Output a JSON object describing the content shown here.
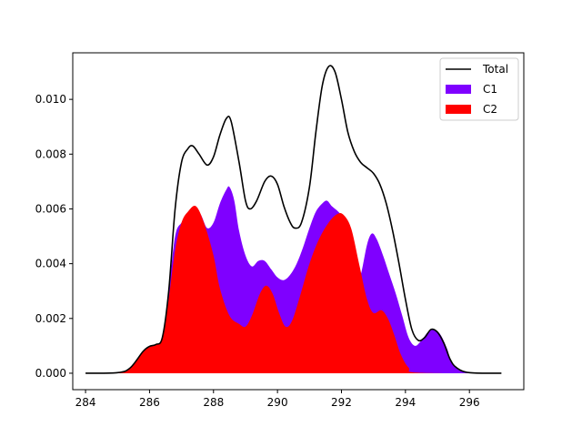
{
  "chart_data": {
    "type": "area",
    "xlim": [
      283.6,
      297.7
    ],
    "ylim": [
      -0.0006,
      0.0117
    ],
    "x_ticks": [
      284,
      286,
      288,
      290,
      292,
      294,
      296
    ],
    "y_ticks": [
      0.0,
      0.002,
      0.004,
      0.006,
      0.008,
      0.01
    ],
    "x_tick_labels": [
      "284",
      "286",
      "288",
      "290",
      "292",
      "294",
      "296"
    ],
    "y_tick_labels": [
      "0.000",
      "0.002",
      "0.004",
      "0.006",
      "0.008",
      "0.010"
    ],
    "legend_position": "upper-right",
    "legend": [
      "Total",
      "C1",
      "C2"
    ],
    "series": [
      {
        "name": "Total",
        "kind": "line",
        "color": "#000000",
        "points": [
          [
            284.0,
            0.0
          ],
          [
            285.0,
            2e-05
          ],
          [
            285.4,
            0.0002
          ],
          [
            285.8,
            0.0008
          ],
          [
            286.0,
            0.00098
          ],
          [
            286.2,
            0.00105
          ],
          [
            286.4,
            0.0013
          ],
          [
            286.6,
            0.003
          ],
          [
            286.8,
            0.006
          ],
          [
            287.0,
            0.0077
          ],
          [
            287.2,
            0.0082
          ],
          [
            287.35,
            0.0083
          ],
          [
            287.55,
            0.008
          ],
          [
            287.8,
            0.0076
          ],
          [
            288.0,
            0.0079
          ],
          [
            288.2,
            0.0087
          ],
          [
            288.4,
            0.0093
          ],
          [
            288.55,
            0.0092
          ],
          [
            288.8,
            0.0077
          ],
          [
            289.0,
            0.0063
          ],
          [
            289.15,
            0.006
          ],
          [
            289.35,
            0.0063
          ],
          [
            289.6,
            0.007
          ],
          [
            289.8,
            0.0072
          ],
          [
            290.0,
            0.0069
          ],
          [
            290.2,
            0.0061
          ],
          [
            290.4,
            0.0055
          ],
          [
            290.55,
            0.0053
          ],
          [
            290.75,
            0.0055
          ],
          [
            291.0,
            0.0068
          ],
          [
            291.2,
            0.0088
          ],
          [
            291.4,
            0.0105
          ],
          [
            291.6,
            0.0112
          ],
          [
            291.8,
            0.011
          ],
          [
            292.0,
            0.01
          ],
          [
            292.2,
            0.0088
          ],
          [
            292.4,
            0.0081
          ],
          [
            292.6,
            0.0077
          ],
          [
            292.8,
            0.0075
          ],
          [
            293.0,
            0.0073
          ],
          [
            293.2,
            0.0069
          ],
          [
            293.4,
            0.0062
          ],
          [
            293.6,
            0.0052
          ],
          [
            293.8,
            0.004
          ],
          [
            294.0,
            0.0027
          ],
          [
            294.2,
            0.0016
          ],
          [
            294.4,
            0.0012
          ],
          [
            294.6,
            0.0013
          ],
          [
            294.8,
            0.0016
          ],
          [
            295.0,
            0.0015
          ],
          [
            295.2,
            0.0011
          ],
          [
            295.4,
            0.0005
          ],
          [
            295.6,
            0.0002
          ],
          [
            296.0,
            2e-05
          ],
          [
            297.0,
            0.0
          ]
        ]
      },
      {
        "name": "C1",
        "kind": "fill",
        "color": "#7f00ff",
        "points": [
          [
            284.0,
            0.0
          ],
          [
            285.0,
            2e-05
          ],
          [
            285.4,
            0.0002
          ],
          [
            285.8,
            0.0008
          ],
          [
            286.0,
            0.00098
          ],
          [
            286.2,
            0.00105
          ],
          [
            286.4,
            0.0013
          ],
          [
            286.6,
            0.003
          ],
          [
            286.8,
            0.005
          ],
          [
            287.0,
            0.0055
          ],
          [
            287.2,
            0.0058
          ],
          [
            287.4,
            0.006
          ],
          [
            287.6,
            0.0058
          ],
          [
            287.8,
            0.0053
          ],
          [
            288.0,
            0.0055
          ],
          [
            288.2,
            0.0062
          ],
          [
            288.4,
            0.0067
          ],
          [
            288.5,
            0.0068
          ],
          [
            288.65,
            0.0063
          ],
          [
            288.8,
            0.0052
          ],
          [
            289.0,
            0.0043
          ],
          [
            289.2,
            0.0039
          ],
          [
            289.4,
            0.0041
          ],
          [
            289.6,
            0.0041
          ],
          [
            289.8,
            0.0038
          ],
          [
            290.0,
            0.0035
          ],
          [
            290.2,
            0.0034
          ],
          [
            290.4,
            0.0036
          ],
          [
            290.6,
            0.004
          ],
          [
            290.8,
            0.0046
          ],
          [
            291.0,
            0.0053
          ],
          [
            291.2,
            0.0059
          ],
          [
            291.4,
            0.0062
          ],
          [
            291.55,
            0.0063
          ],
          [
            291.7,
            0.0061
          ],
          [
            291.9,
            0.0059
          ],
          [
            292.1,
            0.0056
          ],
          [
            292.3,
            0.0049
          ],
          [
            292.5,
            0.0039
          ],
          [
            292.6,
            0.0036
          ],
          [
            292.8,
            0.0047
          ],
          [
            292.95,
            0.0051
          ],
          [
            293.1,
            0.0049
          ],
          [
            293.3,
            0.0043
          ],
          [
            293.5,
            0.0036
          ],
          [
            293.7,
            0.0029
          ],
          [
            293.9,
            0.0021
          ],
          [
            294.1,
            0.0013
          ],
          [
            294.3,
            0.001
          ],
          [
            294.5,
            0.0012
          ],
          [
            294.7,
            0.0015
          ],
          [
            294.9,
            0.0016
          ],
          [
            295.1,
            0.0014
          ],
          [
            295.3,
            0.0009
          ],
          [
            295.5,
            0.0003
          ],
          [
            296.0,
            2e-05
          ],
          [
            297.0,
            0.0
          ]
        ]
      },
      {
        "name": "C2",
        "kind": "fill",
        "color": "#ff0000",
        "points": [
          [
            284.0,
            0.0
          ],
          [
            285.0,
            2e-05
          ],
          [
            285.4,
            0.0002
          ],
          [
            285.8,
            0.0008
          ],
          [
            286.0,
            0.00098
          ],
          [
            286.2,
            0.00105
          ],
          [
            286.4,
            0.0013
          ],
          [
            286.6,
            0.0027
          ],
          [
            286.8,
            0.0045
          ],
          [
            287.0,
            0.0055
          ],
          [
            287.2,
            0.0059
          ],
          [
            287.45,
            0.0061
          ],
          [
            287.7,
            0.0055
          ],
          [
            288.0,
            0.0043
          ],
          [
            288.2,
            0.0031
          ],
          [
            288.5,
            0.0021
          ],
          [
            288.8,
            0.0018
          ],
          [
            289.0,
            0.0017
          ],
          [
            289.2,
            0.0021
          ],
          [
            289.45,
            0.0029
          ],
          [
            289.65,
            0.0032
          ],
          [
            289.85,
            0.0029
          ],
          [
            290.05,
            0.0022
          ],
          [
            290.25,
            0.0017
          ],
          [
            290.45,
            0.0019
          ],
          [
            290.7,
            0.0028
          ],
          [
            291.0,
            0.004
          ],
          [
            291.3,
            0.0049
          ],
          [
            291.6,
            0.0055
          ],
          [
            291.85,
            0.0058
          ],
          [
            292.05,
            0.0058
          ],
          [
            292.3,
            0.0053
          ],
          [
            292.55,
            0.004
          ],
          [
            292.8,
            0.0027
          ],
          [
            293.0,
            0.0022
          ],
          [
            293.25,
            0.0023
          ],
          [
            293.45,
            0.002
          ],
          [
            293.65,
            0.0014
          ],
          [
            293.85,
            0.0007
          ],
          [
            294.1,
            0.0002
          ],
          [
            294.4,
            2e-05
          ],
          [
            297.0,
            0.0
          ]
        ]
      }
    ]
  }
}
